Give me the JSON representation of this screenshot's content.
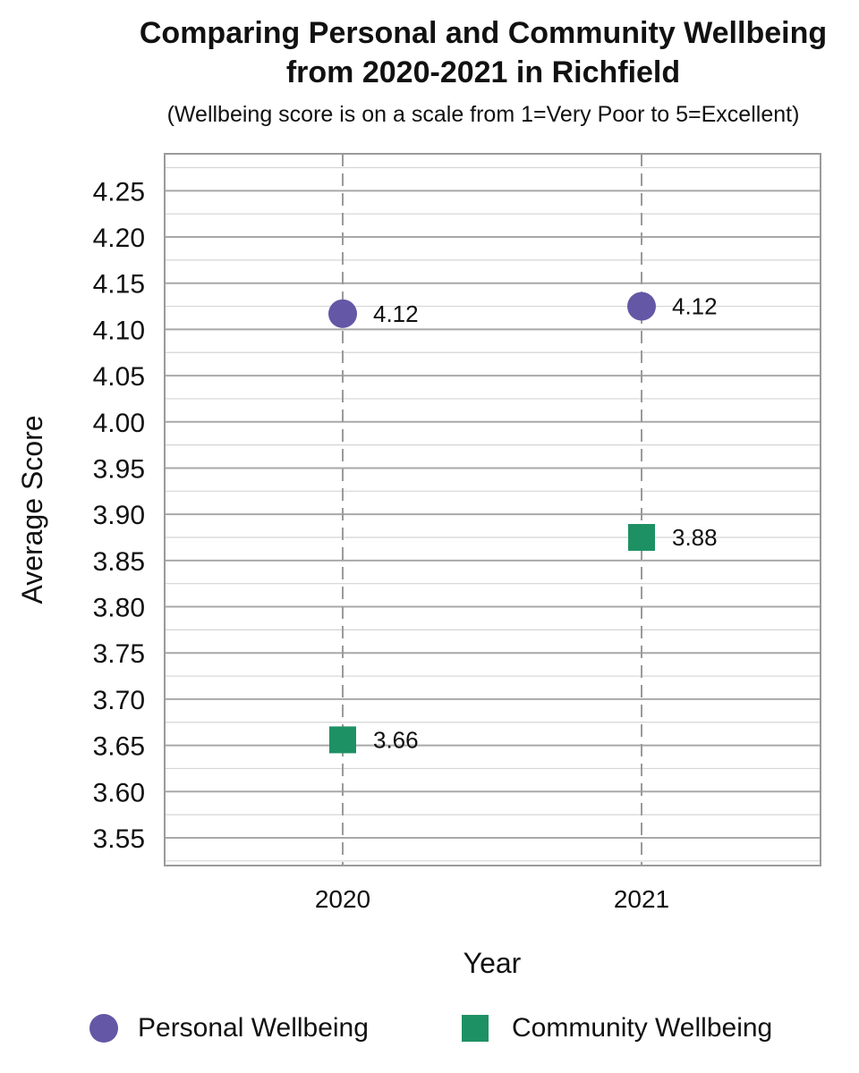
{
  "chart_data": {
    "type": "scatter",
    "title_line1": "Comparing Personal and Community Wellbeing",
    "title_line2": "from 2020-2021 in Richfield",
    "subtitle": "(Wellbeing score is on a scale from 1=Very Poor to 5=Excellent)",
    "xlabel": "Year",
    "ylabel": "Average Score",
    "categories": [
      "2020",
      "2021"
    ],
    "ylim": [
      3.52,
      4.29
    ],
    "yticks": [
      "3.55",
      "3.60",
      "3.65",
      "3.70",
      "3.75",
      "3.80",
      "3.85",
      "3.90",
      "3.95",
      "4.00",
      "4.05",
      "4.10",
      "4.15",
      "4.20",
      "4.25"
    ],
    "grid": true,
    "legend_position": "bottom",
    "series": [
      {
        "name": "Personal Wellbeing",
        "marker": "circle",
        "color": "#6457A6",
        "values": [
          4.117,
          4.125
        ],
        "labels": [
          "4.12",
          "4.12"
        ]
      },
      {
        "name": "Community Wellbeing",
        "marker": "square",
        "color": "#1E9164",
        "values": [
          3.656,
          3.875
        ],
        "labels": [
          "3.66",
          "3.88"
        ]
      }
    ]
  }
}
